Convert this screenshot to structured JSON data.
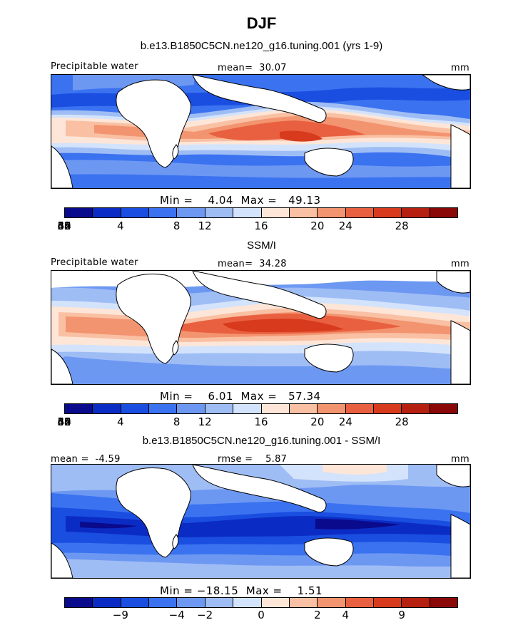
{
  "title": "DJF",
  "colors": {
    "palette": [
      "#0a0a8c",
      "#0b2cc4",
      "#1a4ee0",
      "#3a72f0",
      "#6d98f2",
      "#9fbdf5",
      "#d3e3fb",
      "#fde6d8",
      "#f9c0a3",
      "#f39470",
      "#e96040",
      "#d73a1c",
      "#b52010",
      "#8a0808"
    ],
    "land": "#ffffff",
    "coast": "#000000"
  },
  "panels": [
    {
      "title": "b.e13.B1850C5CN.ne120_g16.tuning.001 (yrs 1-9)",
      "left_label": "Precipitable water",
      "mid_label": "mean=  30.07",
      "right_label": "mm",
      "stats": "Min =    4.04  Max =   49.13",
      "ticks": [
        "4",
        "8",
        "12",
        "16",
        "20",
        "24",
        "28",
        "32",
        "36",
        "40",
        "44",
        "48",
        "52",
        "56",
        "60"
      ]
    },
    {
      "title": "SSM/I",
      "left_label": "Precipitable water",
      "mid_label": "mean=  34.28",
      "right_label": "mm",
      "stats": "Min =    6.01  Max =   57.34",
      "ticks": [
        "4",
        "8",
        "12",
        "16",
        "20",
        "24",
        "28",
        "32",
        "36",
        "40",
        "44",
        "48",
        "52",
        "56",
        "60"
      ]
    },
    {
      "title": "b.e13.B1850C5CN.ne120_g16.tuning.001 - SSM/I",
      "left_label": "mean =  -4.59",
      "mid_label": "rmse =    5.87",
      "right_label": "mm",
      "stats": "Min = −18.15  Max =    1.51",
      "ticks": [
        "−9",
        "−4",
        "−2",
        "0",
        "2",
        "4",
        "9"
      ]
    }
  ]
}
